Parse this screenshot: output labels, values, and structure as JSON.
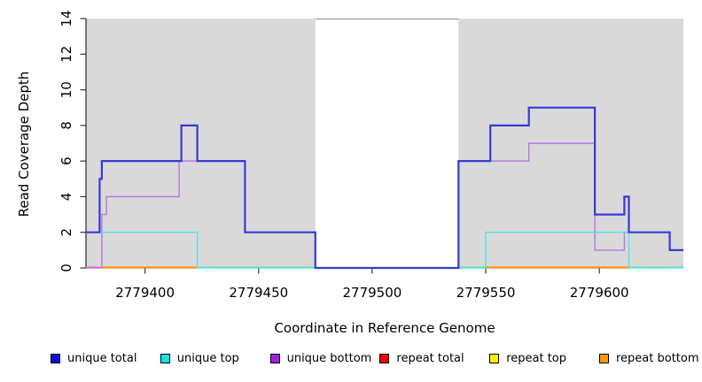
{
  "chart_data": {
    "type": "line",
    "subtype": "step-after-coverage",
    "title": "",
    "xlabel": "Coordinate in Reference Genome",
    "ylabel": "Read Coverage Depth",
    "xlim": [
      2779374,
      2779637
    ],
    "ylim": [
      0,
      14
    ],
    "x_ticks": [
      2779400,
      2779450,
      2779500,
      2779550,
      2779600
    ],
    "y_ticks": [
      0,
      2,
      4,
      6,
      8,
      10,
      12,
      14
    ],
    "grid": false,
    "legend_position": "bottom",
    "plot_bg_color": "#ffffff",
    "region_bg_color": "#d9d9d9",
    "background_regions": [
      {
        "x0": 2779374,
        "x1": 2779475
      },
      {
        "x0": 2779538,
        "x1": 2779637
      }
    ],
    "gap_region": {
      "x0": 2779475,
      "x1": 2779538,
      "top_border_color": "#999999"
    },
    "series": [
      {
        "name": "unique total",
        "legend_color": "#0d0de0",
        "line_color": "#3939d6",
        "width": 2.2,
        "draw": true,
        "steps": [
          [
            2779374,
            2
          ],
          [
            2779380,
            5
          ],
          [
            2779381,
            6
          ],
          [
            2779416,
            8
          ],
          [
            2779423,
            6
          ],
          [
            2779444,
            2
          ],
          [
            2779475,
            0
          ],
          [
            2779538,
            6
          ],
          [
            2779552,
            8
          ],
          [
            2779569,
            9
          ],
          [
            2779598,
            3
          ],
          [
            2779611,
            4
          ],
          [
            2779613,
            2
          ],
          [
            2779631,
            1
          ]
        ]
      },
      {
        "name": "unique top",
        "legend_color": "#00e8e8",
        "line_color": "#55e1e7",
        "width": 1.4,
        "draw": true,
        "steps": [
          [
            2779374,
            2
          ],
          [
            2779423,
            0
          ],
          [
            2779550,
            2
          ],
          [
            2779613,
            0
          ]
        ]
      },
      {
        "name": "unique bottom",
        "legend_color": "#a21fdc",
        "line_color": "#b676e3",
        "width": 1.4,
        "draw": true,
        "steps": [
          [
            2779374,
            0
          ],
          [
            2779381,
            3
          ],
          [
            2779383,
            4
          ],
          [
            2779415,
            6
          ],
          [
            2779444,
            2
          ],
          [
            2779475,
            0
          ],
          [
            2779538,
            6
          ],
          [
            2779569,
            7
          ],
          [
            2779598,
            1
          ],
          [
            2779611,
            2
          ],
          [
            2779631,
            1
          ]
        ]
      },
      {
        "name": "repeat total",
        "legend_color": "#ee0000",
        "line_color": "#ec6fbd",
        "width": 1.4,
        "draw": false,
        "steps": [
          [
            2779374,
            0
          ]
        ]
      },
      {
        "name": "repeat top",
        "legend_color": "#fff000",
        "line_color": "#90d793",
        "width": 1.4,
        "draw": false,
        "steps": [
          [
            2779374,
            0
          ]
        ]
      },
      {
        "name": "repeat bottom",
        "legend_color": "#ff9900",
        "line_color": "#ff9500",
        "width": 1.8,
        "draw": false,
        "steps": [
          [
            2779374,
            0
          ]
        ]
      }
    ],
    "baseline_segments": [
      {
        "x0": 2779374,
        "x1": 2779381,
        "color": "#ec6fbd"
      },
      {
        "x0": 2779381,
        "x1": 2779423,
        "color": "#ff9500"
      },
      {
        "x0": 2779423,
        "x1": 2779475,
        "color": "#90d793"
      },
      {
        "x0": 2779538,
        "x1": 2779550,
        "color": "#90d793"
      },
      {
        "x0": 2779550,
        "x1": 2779613,
        "color": "#ff9500"
      },
      {
        "x0": 2779613,
        "x1": 2779637,
        "color": "#90d793"
      }
    ]
  },
  "legend": {
    "items": [
      {
        "label": "unique total",
        "color": "#0d0de0"
      },
      {
        "label": "unique top",
        "color": "#00e8e8"
      },
      {
        "label": "unique bottom",
        "color": "#a21fdc"
      },
      {
        "label": "repeat total",
        "color": "#ee0000"
      },
      {
        "label": "repeat top",
        "color": "#fff000"
      },
      {
        "label": "repeat bottom",
        "color": "#ff9900"
      }
    ]
  }
}
